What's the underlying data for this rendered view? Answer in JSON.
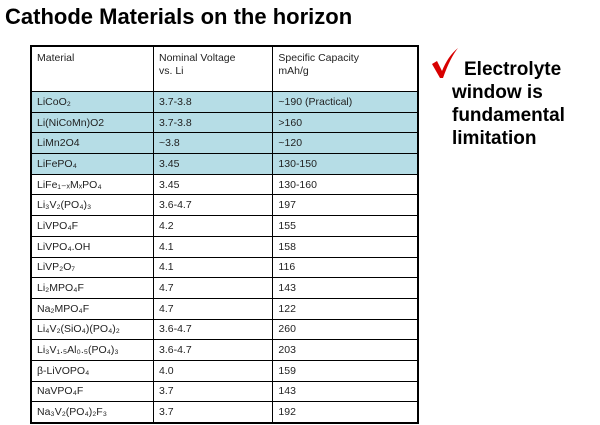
{
  "title": "Cathode Materials on the horizon",
  "table": {
    "header": [
      [
        "Material"
      ],
      [
        "Nominal Voltage",
        "vs. Li"
      ],
      [
        "Specific Capacity",
        "mAh/g"
      ]
    ],
    "rows": [
      [
        "LiCoO₂",
        "3.7-3.8",
        "~190  (Practical)"
      ],
      [
        "Li(NiCoMn)O2",
        "3.7-3.8",
        ">160"
      ],
      [
        "LiMn2O4",
        "~3.8",
        "~120"
      ],
      [
        "LiFePO₄",
        "3.45",
        "130-150"
      ],
      [
        "LiFe₁₋ₓMₓPO₄",
        "3.45",
        "130-160"
      ],
      [
        "Li₃V₂(PO₄)₃",
        "3.6-4.7",
        "197"
      ],
      [
        "LiVPO₄F",
        "4.2",
        "155"
      ],
      [
        "LiVPO₄.OH",
        "4.1",
        "158"
      ],
      [
        "LiVP₂O₇",
        "4.1",
        "116"
      ],
      [
        "Li₂MPO₄F",
        "4.7",
        "143"
      ],
      [
        "Na₂MPO₄F",
        "4.7",
        "122"
      ],
      [
        "Li₄V₂(SiO₄)(PO₄)₂",
        "3.6-4.7",
        "260"
      ],
      [
        "Li₃V₁.₅Al₀.₅(PO₄)₃",
        "3.6-4.7",
        "203"
      ],
      [
        "β-LiVOPO₄",
        "4.0",
        "159"
      ],
      [
        "NaVPO₄F",
        "3.7",
        "143"
      ],
      [
        "Na₃V₂(PO₄)₂F₃",
        "3.7",
        "192"
      ]
    ]
  },
  "note": [
    "Electrolyte",
    "window is",
    "fundamental",
    "limitation"
  ]
}
